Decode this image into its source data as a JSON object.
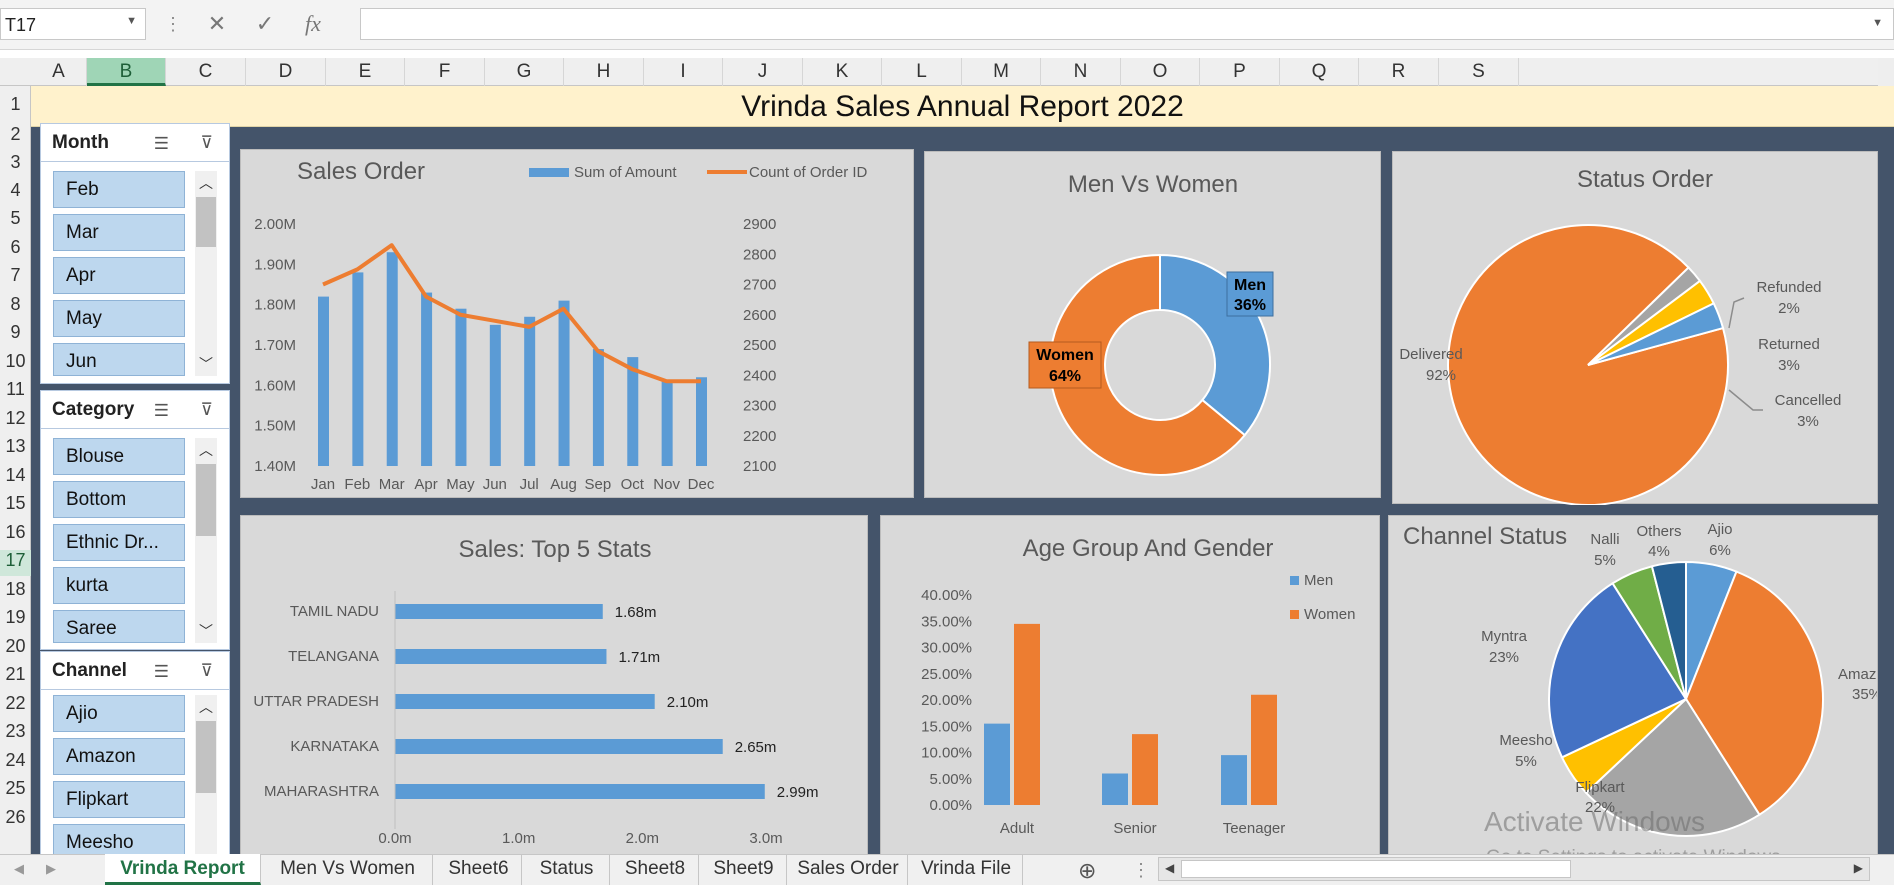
{
  "namebox": {
    "cell": "T17"
  },
  "formula": {
    "fx": "fx",
    "value": ""
  },
  "columns": [
    "A",
    "B",
    "C",
    "D",
    "E",
    "F",
    "G",
    "H",
    "I",
    "J",
    "K",
    "L",
    "M",
    "N",
    "O",
    "P",
    "Q",
    "R",
    "S"
  ],
  "rows": [
    "1",
    "2",
    "3",
    "4",
    "5",
    "6",
    "7",
    "8",
    "9",
    "10",
    "11",
    "12",
    "13",
    "14",
    "15",
    "16",
    "17",
    "18",
    "19",
    "20",
    "21",
    "22",
    "23",
    "24",
    "25",
    "26"
  ],
  "selected_row": "17",
  "selected_col": "B",
  "title": "Vrinda Sales Annual Report 2022",
  "slicers": {
    "month": {
      "label": "Month",
      "items": [
        "Feb",
        "Mar",
        "Apr",
        "May",
        "Jun"
      ]
    },
    "category": {
      "label": "Category",
      "items": [
        "Blouse",
        "Bottom",
        "Ethnic Dr...",
        "kurta",
        "Saree"
      ]
    },
    "channel": {
      "label": "Channel",
      "items": [
        "Ajio",
        "Amazon",
        "Flipkart",
        "Meesho"
      ]
    }
  },
  "chart_data": [
    {
      "type": "bar",
      "title": "Sales Order",
      "categories": [
        "Jan",
        "Feb",
        "Mar",
        "Apr",
        "May",
        "Jun",
        "Jul",
        "Aug",
        "Sep",
        "Oct",
        "Nov",
        "Dec"
      ],
      "series": [
        {
          "name": "Sum of Amount",
          "values": [
            1.82,
            1.88,
            1.93,
            1.83,
            1.79,
            1.75,
            1.77,
            1.81,
            1.69,
            1.67,
            1.61,
            1.62
          ],
          "color": "#5b9bd5"
        },
        {
          "name": "Count of Order ID",
          "type": "line",
          "axis": "secondary",
          "values": [
            2700,
            2750,
            2830,
            2660,
            2600,
            2580,
            2560,
            2620,
            2480,
            2420,
            2380,
            2380
          ],
          "color": "#ed7d31"
        }
      ],
      "y_ticks": [
        "2.00M",
        "1.90M",
        "1.80M",
        "1.70M",
        "1.60M",
        "1.50M",
        "1.40M"
      ],
      "ylim": [
        1.4,
        2.0
      ],
      "y2_ticks": [
        "2900",
        "2800",
        "2700",
        "2600",
        "2500",
        "2400",
        "2300",
        "2200",
        "2100"
      ],
      "y2lim": [
        2100,
        2900
      ],
      "legend": "top"
    },
    {
      "type": "pie",
      "subtype": "doughnut",
      "title": "Men Vs Women",
      "slices": [
        {
          "label": "Men",
          "pct": "36%",
          "value": 36,
          "color": "#5b9bd5"
        },
        {
          "label": "Women",
          "pct": "64%",
          "value": 64,
          "color": "#ed7d31"
        }
      ]
    },
    {
      "type": "pie",
      "title": "Status Order",
      "slices": [
        {
          "label": "Delivered",
          "pct": "92%",
          "value": 92,
          "color": "#ed7d31"
        },
        {
          "label": "Refunded",
          "pct": "2%",
          "value": 2,
          "color": "#a5a5a5"
        },
        {
          "label": "Returned",
          "pct": "3%",
          "value": 3,
          "color": "#ffc000"
        },
        {
          "label": "Cancelled",
          "pct": "3%",
          "value": 3,
          "color": "#5b9bd5"
        }
      ]
    },
    {
      "type": "bar",
      "orientation": "horizontal",
      "title": "Sales: Top 5 Stats",
      "categories": [
        "TAMIL NADU",
        "TELANGANA",
        "UTTAR PRADESH",
        "KARNATAKA",
        "MAHARASHTRA"
      ],
      "values": [
        1.68,
        1.71,
        2.1,
        2.65,
        2.99
      ],
      "labels": [
        "1.68m",
        "1.71m",
        "2.10m",
        "2.65m",
        "2.99m"
      ],
      "x_ticks": [
        "0.0m",
        "1.0m",
        "2.0m",
        "3.0m"
      ],
      "xlim": [
        0,
        3
      ],
      "color": "#5b9bd5"
    },
    {
      "type": "bar",
      "title": "Age Group And Gender",
      "categories": [
        "Adult",
        "Senior",
        "Teenager"
      ],
      "series": [
        {
          "name": "Men",
          "values": [
            15.5,
            6,
            9.5
          ],
          "color": "#5b9bd5"
        },
        {
          "name": "Women",
          "values": [
            34.5,
            13.5,
            21
          ],
          "color": "#ed7d31"
        }
      ],
      "y_ticks": [
        "40.00%",
        "35.00%",
        "30.00%",
        "25.00%",
        "20.00%",
        "15.00%",
        "10.00%",
        "5.00%",
        "0.00%"
      ],
      "ylim": [
        0,
        40
      ],
      "legend": "right"
    },
    {
      "type": "pie",
      "title": "Channel Status",
      "slices": [
        {
          "label": "Ajio",
          "pct": "6%",
          "value": 6,
          "color": "#5b9bd5"
        },
        {
          "label": "Amazon",
          "pct": "35%",
          "value": 35,
          "color": "#ed7d31",
          "shown_label": "Amaz",
          "shown_pct": "35%"
        },
        {
          "label": "Flipkart",
          "pct": "22%",
          "value": 22,
          "color": "#a5a5a5",
          "shown_pct": "22%"
        },
        {
          "label": "Meesho",
          "pct": "5%",
          "value": 5,
          "color": "#ffc000"
        },
        {
          "label": "Myntra",
          "pct": "23%",
          "value": 23,
          "color": "#4472c4"
        },
        {
          "label": "Nalli",
          "pct": "5%",
          "value": 5,
          "color": "#70ad47"
        },
        {
          "label": "Others",
          "pct": "4%",
          "value": 4,
          "color": "#255e91"
        }
      ]
    }
  ],
  "sheet_tabs": [
    "Vrinda Report",
    "Men Vs Women",
    "Sheet6",
    "Status",
    "Sheet8",
    "Sheet9",
    "Sales Order",
    "Vrinda File"
  ],
  "active_tab": "Vrinda Report",
  "watermark": {
    "line1": "Activate Windows",
    "line2": "Go to Settings to activate Windows."
  }
}
